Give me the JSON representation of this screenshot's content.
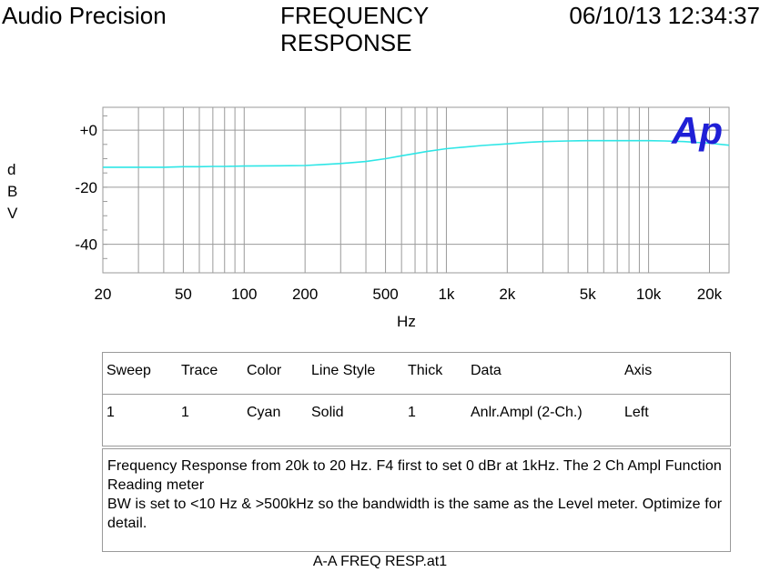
{
  "header": {
    "left": "Audio Precision",
    "title": "FREQUENCY\nRESPONSE",
    "date": "06/10/13 12:34:37"
  },
  "logo_text": "Ap",
  "chart_data": {
    "type": "line",
    "title": "FREQUENCY RESPONSE",
    "xlabel": "Hz",
    "ylabel": "dBV",
    "xscale": "log",
    "xlim": [
      20,
      25000
    ],
    "ylim": [
      -50,
      8
    ],
    "grid": true,
    "x_ticks": [
      20,
      50,
      100,
      200,
      500,
      1000,
      2000,
      5000,
      10000,
      20000
    ],
    "x_tick_labels": [
      "20",
      "50",
      "100",
      "200",
      "500",
      "1k",
      "2k",
      "5k",
      "10k",
      "20k"
    ],
    "y_ticks": [
      0,
      -20,
      -40
    ],
    "y_tick_labels": [
      "+0",
      "-20",
      "-40"
    ],
    "series": [
      {
        "color": "#2ee6e6",
        "x": [
          20,
          30,
          40,
          50,
          60,
          70,
          80,
          100,
          150,
          200,
          250,
          300,
          400,
          500,
          600,
          700,
          800,
          1000,
          1500,
          2000,
          2500,
          3000,
          4000,
          5000,
          6000,
          7000,
          8000,
          10000,
          12000,
          15000,
          20000,
          25000
        ],
        "y": [
          -13,
          -13,
          -13,
          -12.8,
          -12.8,
          -12.7,
          -12.7,
          -12.6,
          -12.5,
          -12.4,
          -12,
          -11.7,
          -11,
          -10,
          -9,
          -8.2,
          -7.5,
          -6.5,
          -5.4,
          -4.8,
          -4.3,
          -4,
          -3.8,
          -3.7,
          -3.7,
          -3.7,
          -3.7,
          -3.7,
          -3.8,
          -4,
          -4.6,
          -5.3
        ]
      }
    ]
  },
  "settings": {
    "headers": [
      "Sweep",
      "Trace",
      "Color",
      "Line Style",
      "Thick",
      "Data",
      "Axis"
    ],
    "row": [
      "1",
      "1",
      "Cyan",
      "Solid",
      "1",
      "Anlr.Ampl (2-Ch.)",
      "Left"
    ]
  },
  "notes": "Frequency Response from 20k to 20 Hz.  F4 first to set 0 dBr at 1kHz.  The 2 Ch Ampl Function Reading meter\nBW is set to <10 Hz & >500kHz so the bandwidth is the same as the Level meter.  Optimize for detail.",
  "footer": "A-A FREQ RESP.at1",
  "colors": {
    "trace": "#2ee6e6",
    "logo": "#1f1fd6",
    "grid": "#9a9a9a"
  }
}
